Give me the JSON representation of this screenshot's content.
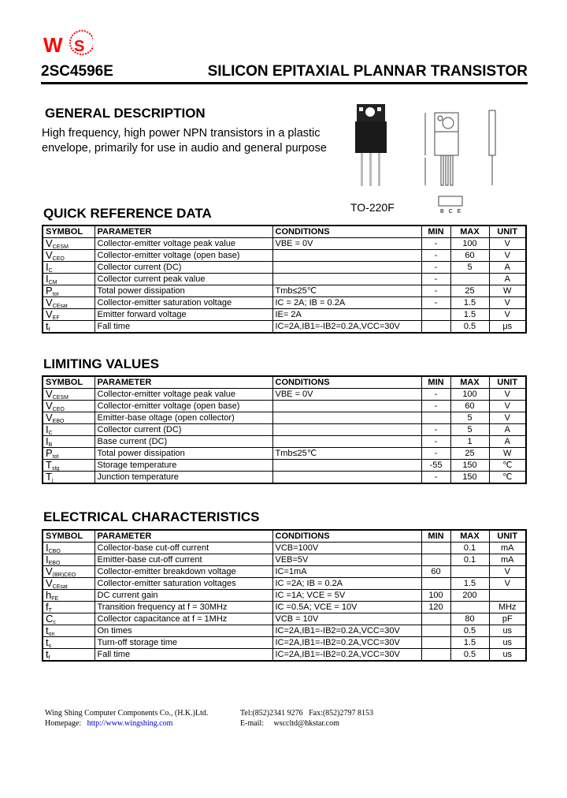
{
  "header": {
    "logo_text": "WS",
    "part_number": "2SC4596E",
    "title": "SILICON EPITAXIAL PLANNAR TRANSISTOR"
  },
  "general": {
    "heading": "GENERAL DESCRIPTION",
    "text": "High frequency, high power NPN transistors in a plastic envelope, primarily for use in audio and general purpose"
  },
  "package": {
    "label": "TO-220F",
    "pins": [
      "B",
      "C",
      "E"
    ]
  },
  "columns": [
    "SYMBOL",
    "PARAMETER",
    "CONDITIONS",
    "MIN",
    "MAX",
    "UNIT"
  ],
  "quick_ref": {
    "heading": "QUICK REFERENCE DATA",
    "rows": [
      {
        "sym": "V",
        "sub": "CESM",
        "param": "Collector-emitter voltage peak value",
        "cond": "VBE = 0V",
        "min": "-",
        "max": "100",
        "unit": "V"
      },
      {
        "sym": "V",
        "sub": "CEO",
        "param": "Collector-emitter voltage (open base)",
        "cond": "",
        "min": "-",
        "max": "60",
        "unit": "V"
      },
      {
        "sym": "I",
        "sub": "C",
        "param": "Collector current (DC)",
        "cond": "",
        "min": "-",
        "max": "5",
        "unit": "A"
      },
      {
        "sym": "I",
        "sub": "CM",
        "param": "Collector current peak value",
        "cond": "",
        "min": "-",
        "max": "",
        "unit": "A"
      },
      {
        "sym": "P",
        "sub": "tot",
        "param": "Total power dissipation",
        "cond": "Tmb≤25℃",
        "min": "-",
        "max": "25",
        "unit": "W"
      },
      {
        "sym": "V",
        "sub": "CEsat",
        "param": "Collector-emitter saturation voltage",
        "cond": "IC = 2A; IB = 0.2A",
        "min": "-",
        "max": "1.5",
        "unit": "V"
      },
      {
        "sym": "V",
        "sub": "EF",
        "param": "Emitter forward voltage",
        "cond": "IE= 2A",
        "min": "",
        "max": "1.5",
        "unit": "V"
      },
      {
        "sym": "t",
        "sub": "f",
        "param": "Fall time",
        "cond": "IC=2A,IB1=-IB2=0.2A,VCC=30V",
        "min": "",
        "max": "0.5",
        "unit": "μs"
      }
    ]
  },
  "limiting": {
    "heading": "LIMITING VALUES",
    "rows": [
      {
        "sym": "V",
        "sub": "CESM",
        "param": "Collector-emitter voltage peak value",
        "cond": "VBE = 0V",
        "min": "-",
        "max": "100",
        "unit": "V"
      },
      {
        "sym": "V",
        "sub": "CEO",
        "param": "Collector-emitter voltage (open base)",
        "cond": "",
        "min": "-",
        "max": "60",
        "unit": "V"
      },
      {
        "sym": "V",
        "sub": "EBO",
        "param": "Emitter-base oltage (open collector)",
        "cond": "",
        "min": "",
        "max": "5",
        "unit": "V"
      },
      {
        "sym": "I",
        "sub": "C",
        "param": "Collector current (DC)",
        "cond": "",
        "min": "-",
        "max": "5",
        "unit": "A"
      },
      {
        "sym": "I",
        "sub": "B",
        "param": "Base current (DC)",
        "cond": "",
        "min": "-",
        "max": "1",
        "unit": "A"
      },
      {
        "sym": "P",
        "sub": "tot",
        "param": "Total power dissipation",
        "cond": "Tmb≤25℃",
        "min": "-",
        "max": "25",
        "unit": "W"
      },
      {
        "sym": "T",
        "sub": "stg",
        "param": "Storage temperature",
        "cond": "",
        "min": "-55",
        "max": "150",
        "unit": "℃"
      },
      {
        "sym": "T",
        "sub": "j",
        "param": "Junction temperature",
        "cond": "",
        "min": "-",
        "max": "150",
        "unit": "℃"
      }
    ]
  },
  "electrical": {
    "heading": "ELECTRICAL CHARACTERISTICS",
    "rows": [
      {
        "sym": "I",
        "sub": "CBO",
        "param": "Collector-base cut-off current",
        "cond": "VCB=100V",
        "min": "",
        "max": "0.1",
        "unit": "mA"
      },
      {
        "sym": "I",
        "sub": "EBO",
        "param": "Emitter-base cut-off current",
        "cond": "VEB=5V",
        "min": "",
        "max": "0.1",
        "unit": "mA"
      },
      {
        "sym": "V",
        "sub": "(BR)CEO",
        "param": "Collector-emitter breakdown voltage",
        "cond": "IC=1mA",
        "min": "60",
        "max": "",
        "unit": "V"
      },
      {
        "sym": "V",
        "sub": "CEsat",
        "param": "Collector-emitter saturation voltages",
        "cond": "IC =2A; IB = 0.2A",
        "min": "",
        "max": "1.5",
        "unit": "V"
      },
      {
        "sym": "h",
        "sub": "FE",
        "param": "DC current gain",
        "cond": "IC =1A; VCE = 5V",
        "min": "100",
        "max": "200",
        "unit": ""
      },
      {
        "sym": "f",
        "sub": "T",
        "param": "Transition frequency at  f = 30MHz",
        "cond": "IC =0.5A; VCE = 10V",
        "min": "120",
        "max": "",
        "unit": "MHz"
      },
      {
        "sym": "C",
        "sub": "c",
        "param": "Collector capacitance at  f = 1MHz",
        "cond": "VCB = 10V",
        "min": "",
        "max": "80",
        "unit": "pF"
      },
      {
        "sym": "t",
        "sub": "on",
        "param": "On times",
        "cond": "IC=2A,IB1=-IB2=0.2A,VCC=30V",
        "min": "",
        "max": "0.5",
        "unit": "us"
      },
      {
        "sym": "t",
        "sub": "s",
        "param": "Turn-off storage time",
        "cond": "IC=2A,IB1=-IB2=0.2A,VCC=30V",
        "min": "",
        "max": "1.5",
        "unit": "us"
      },
      {
        "sym": "t",
        "sub": "f",
        "param": "Fall time",
        "cond": "IC=2A,IB1=-IB2=0.2A,VCC=30V",
        "min": "",
        "max": "0.5",
        "unit": "us"
      }
    ]
  },
  "footer": {
    "company": "Wing Shing Computer Components Co., (H.K.)Ltd.",
    "homepage_label": "Homepage:",
    "homepage_url": "http://www.wingshing.com",
    "tel": "Tel:(852)2341 9276",
    "fax": "Fax:(852)2797 8153",
    "email_label": "E-mail:",
    "email": "wsccltd@hkstar.com"
  },
  "colors": {
    "logo": "#ff0000",
    "link": "#0000cc"
  }
}
